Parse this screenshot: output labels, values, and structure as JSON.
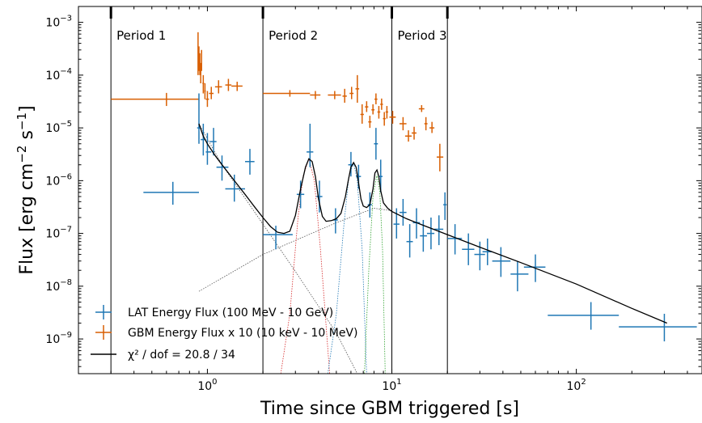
{
  "chart_data": {
    "type": "scatter",
    "xlabel": "Time since GBM triggered [s]",
    "ylabel_parts": {
      "base": "Flux [erg cm",
      "exp1": "−2",
      "mid": " s",
      "exp2": "−1",
      "end": "]"
    },
    "x_scale": "log",
    "y_scale": "log",
    "xlim": [
      0.2,
      480
    ],
    "ylim": [
      2.2e-10,
      0.002
    ],
    "grid": false,
    "legend_placement": "lower-left",
    "x_tick_labels": [
      {
        "value": 1,
        "base": "10",
        "exp": "0"
      },
      {
        "value": 10,
        "base": "10",
        "exp": "1"
      },
      {
        "value": 100,
        "base": "10",
        "exp": "2"
      }
    ],
    "y_tick_labels": [
      {
        "value": 0.001,
        "base": "10",
        "exp": "−3"
      },
      {
        "value": 0.0001,
        "base": "10",
        "exp": "−4"
      },
      {
        "value": 1e-05,
        "base": "10",
        "exp": "−5"
      },
      {
        "value": 1e-06,
        "base": "10",
        "exp": "−6"
      },
      {
        "value": 1e-07,
        "base": "10",
        "exp": "−7"
      },
      {
        "value": 1e-08,
        "base": "10",
        "exp": "−8"
      },
      {
        "value": 1e-09,
        "base": "10",
        "exp": "−9"
      }
    ],
    "periods": [
      {
        "label": "Period 1",
        "x": 0.3
      },
      {
        "label": "Period 2",
        "x": 2.0
      },
      {
        "label": "Period 3",
        "x": 10.0
      }
    ],
    "extra_vlines": [
      20.0
    ],
    "colors": {
      "lat": "#1f77b4",
      "gbm": "#d95f02",
      "model": "#000000"
    },
    "legend": {
      "lat": "LAT Energy Flux (100 MeV - 10 GeV)",
      "gbm": "GBM Energy Flux x 10 (10 keV - 10 MeV)",
      "model": "χ² / dof = 20.8 / 34"
    },
    "series": [
      {
        "name": "LAT Energy Flux (100 MeV - 10 GeV)",
        "kind": "errorbar",
        "points": [
          [
            0.65,
            0.45,
            0.9,
            6e-07,
            3.5e-07,
            9.5e-07
          ],
          [
            0.9,
            0.88,
            0.92,
            1e-05,
            5e-06,
            4.5e-05
          ],
          [
            0.95,
            0.92,
            0.98,
            6e-06,
            3e-06,
            1.2e-05
          ],
          [
            1.0,
            0.98,
            1.05,
            3.5e-06,
            2e-06,
            8e-06
          ],
          [
            1.08,
            1.03,
            1.12,
            5.5e-06,
            3e-06,
            1e-05
          ],
          [
            1.2,
            1.12,
            1.3,
            1.8e-06,
            1e-06,
            3e-06
          ],
          [
            1.4,
            1.25,
            1.6,
            7e-07,
            4e-07,
            1.3e-06
          ],
          [
            1.7,
            1.6,
            1.8,
            2.3e-06,
            1.3e-06,
            4e-06
          ],
          [
            2.35,
            2.0,
            2.9,
            9.5e-08,
            5e-08,
            1.4e-07
          ],
          [
            3.2,
            3.05,
            3.35,
            5.5e-07,
            3e-07,
            1e-06
          ],
          [
            3.6,
            3.45,
            3.75,
            3.5e-06,
            1.8e-06,
            1.2e-05
          ],
          [
            4.05,
            3.9,
            4.2,
            5e-07,
            2.5e-07,
            1e-06
          ],
          [
            4.95,
            4.8,
            5.1,
            1.8e-07,
            1e-07,
            3e-07
          ],
          [
            6.0,
            5.8,
            6.2,
            2e-06,
            1.2e-06,
            3.5e-06
          ],
          [
            6.6,
            6.4,
            6.8,
            1.2e-06,
            7e-07,
            2e-06
          ],
          [
            7.6,
            7.4,
            7.8,
            3.5e-07,
            2e-07,
            6e-07
          ],
          [
            8.2,
            8.0,
            8.4,
            5e-06,
            2.5e-06,
            1e-05
          ],
          [
            8.7,
            8.5,
            8.9,
            1.2e-06,
            6e-07,
            2.5e-06
          ],
          [
            10.6,
            10.2,
            11.0,
            1.5e-07,
            8e-08,
            3e-07
          ],
          [
            11.5,
            11.0,
            12.0,
            2.5e-07,
            1.4e-07,
            4.5e-07
          ],
          [
            12.5,
            12.0,
            13.0,
            7e-08,
            3.5e-08,
            1.5e-07
          ],
          [
            13.6,
            13.0,
            14.2,
            1.6e-07,
            8e-08,
            3e-07
          ],
          [
            14.8,
            14.2,
            15.5,
            9e-08,
            4.5e-08,
            1.8e-07
          ],
          [
            16.3,
            15.5,
            17.0,
            1e-07,
            5e-08,
            2e-07
          ],
          [
            18.0,
            17.0,
            19.0,
            1.2e-07,
            6e-08,
            2.2e-07
          ],
          [
            19.4,
            19.0,
            19.8,
            3.5e-07,
            1.8e-07,
            6e-07
          ],
          [
            22.0,
            20.0,
            24.0,
            8e-08,
            4e-08,
            1.5e-07
          ],
          [
            26.0,
            24.0,
            28.0,
            5e-08,
            2.5e-08,
            1e-07
          ],
          [
            30.0,
            28.0,
            32.0,
            4e-08,
            2e-08,
            7e-08
          ],
          [
            33.0,
            31.0,
            35.0,
            4.5e-08,
            2.5e-08,
            8e-08
          ],
          [
            39.0,
            35.0,
            44.0,
            3e-08,
            1.5e-08,
            5.5e-08
          ],
          [
            48.0,
            44.0,
            55.0,
            1.7e-08,
            8e-09,
            3e-08
          ],
          [
            60.0,
            52.0,
            68.0,
            2.3e-08,
            1.2e-08,
            4e-08
          ],
          [
            120.0,
            70.0,
            170.0,
            2.8e-09,
            1.5e-09,
            5e-09
          ],
          [
            300.0,
            170.0,
            450.0,
            1.7e-09,
            9e-10,
            3e-09
          ]
        ]
      },
      {
        "name": "GBM Energy Flux x 10 (10 keV - 10 MeV)",
        "kind": "errorbar",
        "points": [
          [
            0.6,
            0.3,
            0.9,
            3.5e-05,
            2.6e-05,
            4.6e-05
          ],
          [
            0.89,
            0.885,
            0.895,
            0.00035,
            0.0001,
            0.00065
          ],
          [
            0.9,
            0.895,
            0.905,
            0.00022,
            0.00012,
            0.00035
          ],
          [
            0.91,
            0.905,
            0.915,
            0.00016,
            0.0001,
            0.00026
          ],
          [
            0.92,
            0.915,
            0.925,
            0.00011,
            7e-05,
            0.00017
          ],
          [
            0.93,
            0.925,
            0.935,
            0.0002,
            0.00012,
            0.0003
          ],
          [
            0.95,
            0.94,
            0.96,
            7e-05,
            4.5e-05,
            0.0001
          ],
          [
            0.97,
            0.96,
            0.98,
            5e-05,
            3.5e-05,
            7e-05
          ],
          [
            1.0,
            0.98,
            1.02,
            3.5e-05,
            2.5e-05,
            5e-05
          ],
          [
            1.05,
            1.02,
            1.08,
            4.5e-05,
            3.5e-05,
            6e-05
          ],
          [
            1.15,
            1.1,
            1.2,
            6e-05,
            4.5e-05,
            8e-05
          ],
          [
            1.3,
            1.25,
            1.35,
            6.5e-05,
            5e-05,
            8.5e-05
          ],
          [
            1.45,
            1.35,
            1.55,
            6.2e-05,
            5e-05,
            7.5e-05
          ],
          [
            2.8,
            2.0,
            3.6,
            4.5e-05,
            3.9e-05,
            5.2e-05
          ],
          [
            3.85,
            3.6,
            4.1,
            4.2e-05,
            3.5e-05,
            5e-05
          ],
          [
            4.9,
            4.5,
            5.3,
            4.2e-05,
            3.5e-05,
            5e-05
          ],
          [
            5.55,
            5.4,
            5.7,
            4e-05,
            3e-05,
            5.5e-05
          ],
          [
            6.05,
            5.9,
            6.2,
            4.5e-05,
            3.5e-05,
            6e-05
          ],
          [
            6.5,
            6.35,
            6.65,
            5.5e-05,
            3e-05,
            0.0001
          ],
          [
            6.9,
            6.75,
            7.05,
            1.8e-05,
            1.2e-05,
            2.8e-05
          ],
          [
            7.3,
            7.15,
            7.45,
            2.5e-05,
            2e-05,
            3.2e-05
          ],
          [
            7.6,
            7.45,
            7.75,
            1.3e-05,
            1e-05,
            1.7e-05
          ],
          [
            7.9,
            7.75,
            8.05,
            2.2e-05,
            1.8e-05,
            2.8e-05
          ],
          [
            8.2,
            8.05,
            8.35,
            3.5e-05,
            2.8e-05,
            4.5e-05
          ],
          [
            8.5,
            8.35,
            8.65,
            2e-05,
            1.5e-05,
            2.6e-05
          ],
          [
            8.8,
            8.65,
            8.95,
            2.8e-05,
            2.2e-05,
            3.6e-05
          ],
          [
            9.1,
            8.95,
            9.25,
            1.5e-05,
            1.1e-05,
            2e-05
          ],
          [
            9.4,
            9.25,
            9.55,
            2e-05,
            1.5e-05,
            2.6e-05
          ],
          [
            10.1,
            9.7,
            10.5,
            1.6e-05,
            1.2e-05,
            2.1e-05
          ],
          [
            11.5,
            11.0,
            12.0,
            1.2e-05,
            9e-06,
            1.6e-05
          ],
          [
            12.3,
            11.8,
            12.8,
            7e-06,
            5.5e-06,
            9e-06
          ],
          [
            13.2,
            12.8,
            13.6,
            8e-06,
            6e-06,
            1.05e-05
          ],
          [
            14.5,
            14.0,
            15.0,
            2.3e-05,
            2e-05,
            2.7e-05
          ],
          [
            15.3,
            15.0,
            15.6,
            1.2e-05,
            9e-06,
            1.6e-05
          ],
          [
            16.5,
            16.0,
            17.0,
            1e-05,
            8e-06,
            1.3e-05
          ],
          [
            18.2,
            17.5,
            19.0,
            2.8e-06,
            1.5e-06,
            5e-06
          ]
        ]
      },
      {
        "name": "χ² / dof = 20.8 / 34",
        "kind": "line",
        "points": [
          [
            0.9,
            1.2e-05
          ],
          [
            0.95,
            7e-06
          ],
          [
            1.0,
            5e-06
          ],
          [
            1.1,
            3e-06
          ],
          [
            1.2,
            2e-06
          ],
          [
            1.4,
            1e-06
          ],
          [
            1.6,
            5.5e-07
          ],
          [
            1.8,
            3.2e-07
          ],
          [
            2.0,
            2e-07
          ],
          [
            2.2,
            1.35e-07
          ],
          [
            2.4,
            1.05e-07
          ],
          [
            2.6,
            1e-07
          ],
          [
            2.8,
            1.1e-07
          ],
          [
            3.0,
            2.2e-07
          ],
          [
            3.2,
            7e-07
          ],
          [
            3.4,
            1.8e-06
          ],
          [
            3.55,
            2.6e-06
          ],
          [
            3.7,
            2.3e-06
          ],
          [
            3.85,
            1.2e-06
          ],
          [
            4.0,
            4.5e-07
          ],
          [
            4.2,
            2.1e-07
          ],
          [
            4.4,
            1.7e-07
          ],
          [
            4.7,
            1.75e-07
          ],
          [
            5.0,
            1.9e-07
          ],
          [
            5.3,
            2.4e-07
          ],
          [
            5.6,
            5e-07
          ],
          [
            5.8,
            1e-06
          ],
          [
            6.0,
            1.8e-06
          ],
          [
            6.2,
            2.2e-06
          ],
          [
            6.4,
            1.8e-06
          ],
          [
            6.6,
            9e-07
          ],
          [
            6.8,
            4.5e-07
          ],
          [
            7.0,
            3.3e-07
          ],
          [
            7.3,
            3.1e-07
          ],
          [
            7.6,
            3.5e-07
          ],
          [
            7.9,
            7e-07
          ],
          [
            8.1,
            1.4e-06
          ],
          [
            8.3,
            1.6e-06
          ],
          [
            8.5,
            1.2e-06
          ],
          [
            8.7,
            6.5e-07
          ],
          [
            9.0,
            3.8e-07
          ],
          [
            9.5,
            3e-07
          ],
          [
            10.0,
            2.6e-07
          ],
          [
            12.0,
            1.9e-07
          ],
          [
            15.0,
            1.4e-07
          ],
          [
            20.0,
            9.5e-08
          ],
          [
            30.0,
            5.5e-08
          ],
          [
            50.0,
            2.8e-08
          ],
          [
            100.0,
            1.1e-08
          ],
          [
            200.0,
            3.8e-09
          ],
          [
            300.0,
            2.1e-09
          ],
          [
            310.0,
            2e-09
          ]
        ]
      }
    ],
    "components": [
      {
        "name": "decay",
        "color": "#555555",
        "points": [
          [
            0.9,
            1.2e-05
          ],
          [
            1.2,
            2e-06
          ],
          [
            2.0,
            1.5e-07
          ],
          [
            3.0,
            1.9e-08
          ],
          [
            5.0,
            1.3e-09
          ],
          [
            6.5,
            2.2e-10
          ]
        ]
      },
      {
        "name": "rise",
        "color": "#555555",
        "points": [
          [
            0.9,
            8e-09
          ],
          [
            2.0,
            4e-08
          ],
          [
            5.0,
            1.6e-07
          ],
          [
            8.0,
            3e-07
          ],
          [
            10.0,
            2.7e-07
          ]
        ]
      },
      {
        "name": "pulse1",
        "color": "#d62728",
        "points": [
          [
            2.5,
            2.2e-10
          ],
          [
            2.8,
            3e-09
          ],
          [
            3.1,
            2e-07
          ],
          [
            3.3,
            1.2e-06
          ],
          [
            3.55,
            2.6e-06
          ],
          [
            3.8,
            1e-06
          ],
          [
            4.1,
            5e-08
          ],
          [
            4.6,
            2.2e-10
          ]
        ]
      },
      {
        "name": "pulse2",
        "color": "#1f77b4",
        "points": [
          [
            4.5,
            2.2e-10
          ],
          [
            5.0,
            3e-09
          ],
          [
            5.5,
            1.5e-07
          ],
          [
            5.85,
            1.2e-06
          ],
          [
            6.2,
            2.2e-06
          ],
          [
            6.5,
            1e-06
          ],
          [
            6.9,
            5e-08
          ],
          [
            7.3,
            2.2e-10
          ]
        ]
      },
      {
        "name": "pulse3",
        "color": "#2ca02c",
        "points": [
          [
            7.1,
            2.2e-10
          ],
          [
            7.5,
            2e-08
          ],
          [
            7.9,
            5e-07
          ],
          [
            8.3,
            1.3e-06
          ],
          [
            8.6,
            6e-07
          ],
          [
            8.9,
            5e-08
          ],
          [
            9.2,
            2.2e-10
          ]
        ]
      }
    ]
  }
}
